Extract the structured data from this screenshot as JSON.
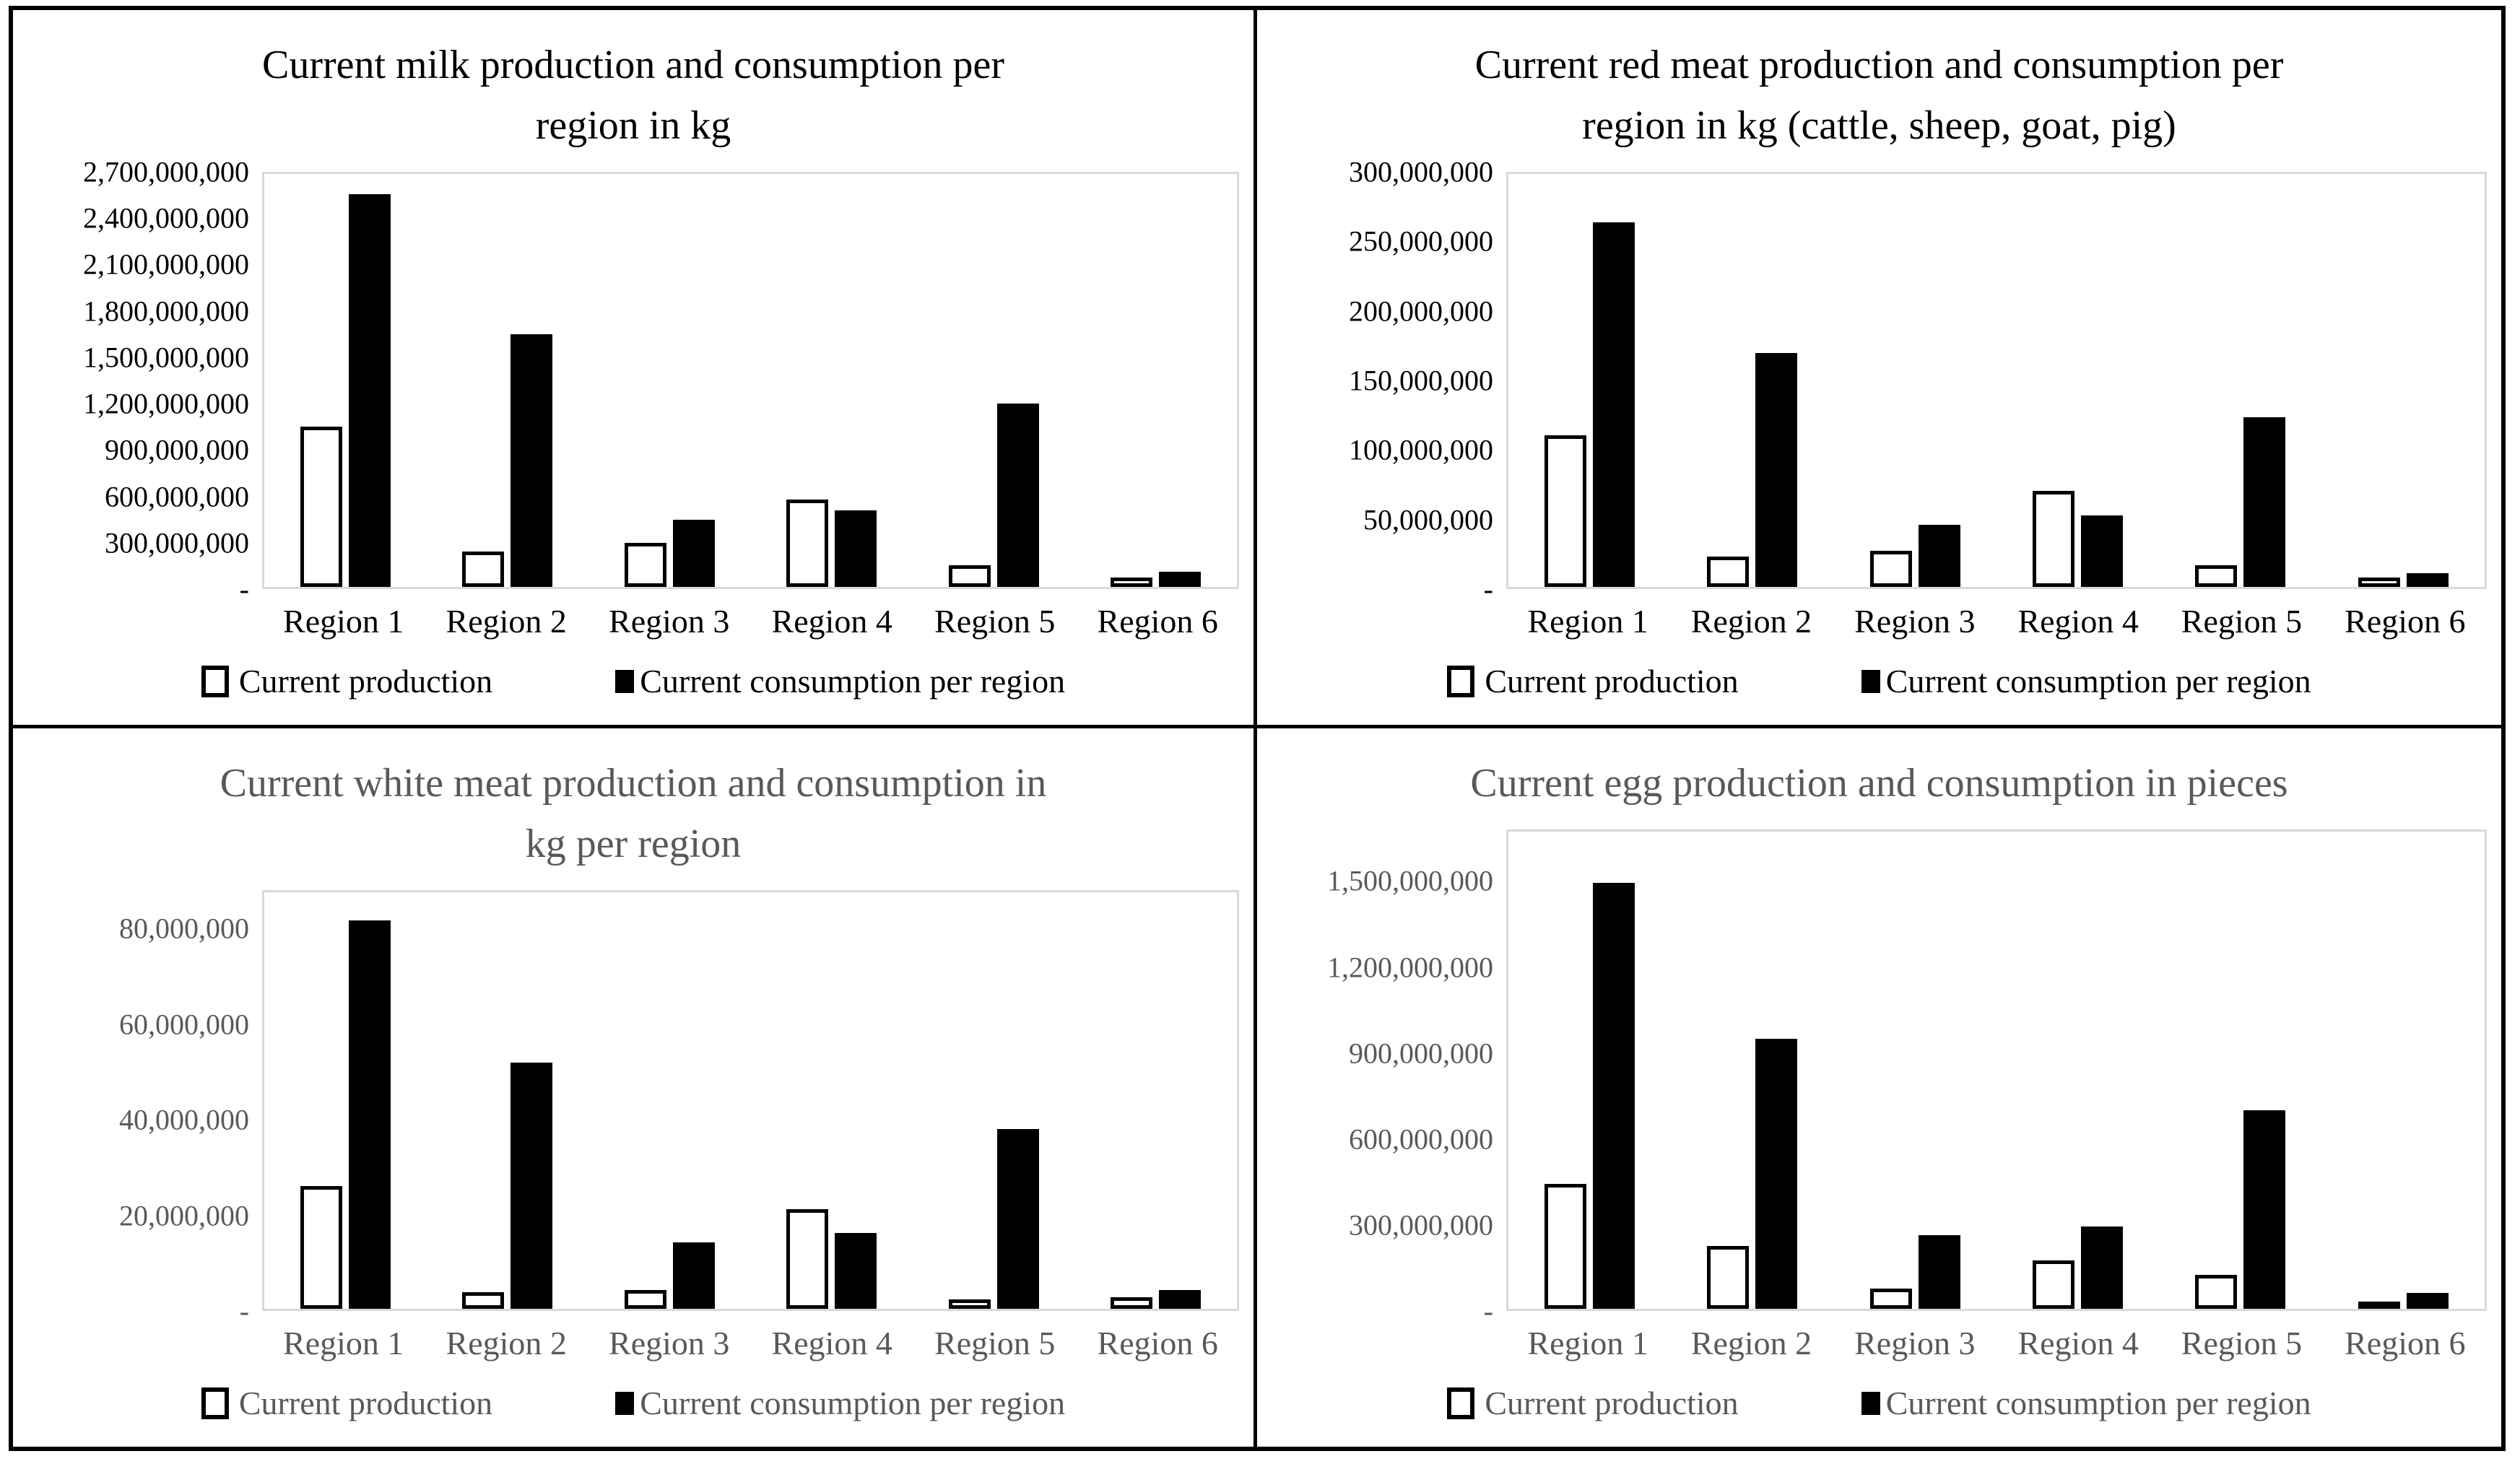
{
  "figure": {
    "background": "#ffffff",
    "border_color": "#000000",
    "plot_border_color": "#d9d9d9",
    "bar_fill_consumption": "#000000",
    "bar_outline_production": "#000000",
    "gray_text_color": "#595959",
    "black_text_color": "#000000"
  },
  "chart_data": [
    {
      "type": "bar",
      "title": "Current milk production and consumption per region in kg",
      "text_color": "#000000",
      "grid": false,
      "legend_position": "bottom",
      "categories": [
        "Region 1",
        "Region 2",
        "Region 3",
        "Region 4",
        "Region 5",
        "Region 6"
      ],
      "series": [
        {
          "name": "Current production",
          "values": [
            1050000000,
            230000000,
            290000000,
            570000000,
            140000000,
            60000000
          ]
        },
        {
          "name": "Current consumption per region",
          "values": [
            2570000000,
            1650000000,
            440000000,
            500000000,
            1200000000,
            100000000
          ]
        }
      ],
      "y_axis": {
        "plot_top_value": 2700000000,
        "ticks": [
          {
            "label": "2,700,000,000",
            "value": 2700000000
          },
          {
            "label": "2,400,000,000",
            "value": 2400000000
          },
          {
            "label": "2,100,000,000",
            "value": 2100000000
          },
          {
            "label": "1,800,000,000",
            "value": 1800000000
          },
          {
            "label": "1,500,000,000",
            "value": 1500000000
          },
          {
            "label": "1,200,000,000",
            "value": 1200000000
          },
          {
            "label": "900,000,000",
            "value": 900000000
          },
          {
            "label": "600,000,000",
            "value": 600000000
          },
          {
            "label": "300,000,000",
            "value": 300000000
          },
          {
            "label": "-",
            "value": 0
          }
        ]
      }
    },
    {
      "type": "bar",
      "title": "Current red meat production and consumption per region in kg (cattle, sheep, goat, pig)",
      "text_color": "#000000",
      "grid": false,
      "legend_position": "bottom",
      "categories": [
        "Region 1",
        "Region 2",
        "Region 3",
        "Region 4",
        "Region 5",
        "Region 6"
      ],
      "series": [
        {
          "name": "Current production",
          "values": [
            110000000,
            22000000,
            26000000,
            70000000,
            16000000,
            7000000
          ]
        },
        {
          "name": "Current consumption per region",
          "values": [
            265000000,
            170000000,
            45000000,
            52000000,
            123000000,
            10000000
          ]
        }
      ],
      "y_axis": {
        "plot_top_value": 300000000,
        "ticks": [
          {
            "label": "300,000,000",
            "value": 300000000
          },
          {
            "label": "250,000,000",
            "value": 250000000
          },
          {
            "label": "200,000,000",
            "value": 200000000
          },
          {
            "label": "150,000,000",
            "value": 150000000
          },
          {
            "label": "100,000,000",
            "value": 100000000
          },
          {
            "label": "50,000,000",
            "value": 50000000
          },
          {
            "label": "-",
            "value": 0
          }
        ]
      }
    },
    {
      "type": "bar",
      "title": "Current white meat production and consumption in kg per region",
      "text_color": "#595959",
      "grid": false,
      "legend_position": "bottom",
      "categories": [
        "Region 1",
        "Region 2",
        "Region 3",
        "Region 4",
        "Region 5",
        "Region 6"
      ],
      "series": [
        {
          "name": "Current production",
          "values": [
            26000000,
            3500000,
            4000000,
            21000000,
            2000000,
            2500000
          ]
        },
        {
          "name": "Current consumption per region",
          "values": [
            82000000,
            52000000,
            14000000,
            16000000,
            38000000,
            4000000
          ]
        }
      ],
      "y_axis": {
        "plot_top_value": 88000000,
        "ticks": [
          {
            "label": "80,000,000",
            "value": 80000000
          },
          {
            "label": "60,000,000",
            "value": 60000000
          },
          {
            "label": "40,000,000",
            "value": 40000000
          },
          {
            "label": "20,000,000",
            "value": 20000000
          },
          {
            "label": "-",
            "value": 0
          }
        ]
      }
    },
    {
      "type": "bar",
      "title": "Current egg production and consumption in pieces",
      "text_color": "#595959",
      "grid": false,
      "legend_position": "bottom",
      "categories": [
        "Region 1",
        "Region 2",
        "Region 3",
        "Region 4",
        "Region 5",
        "Region 6"
      ],
      "series": [
        {
          "name": "Current production",
          "values": [
            440000000,
            220000000,
            70000000,
            170000000,
            120000000,
            20000000
          ]
        },
        {
          "name": "Current consumption per region",
          "values": [
            1500000000,
            950000000,
            260000000,
            290000000,
            700000000,
            55000000
          ]
        }
      ],
      "y_axis": {
        "plot_top_value": 1680000000,
        "ticks": [
          {
            "label": "1,500,000,000",
            "value": 1500000000
          },
          {
            "label": "1,200,000,000",
            "value": 1200000000
          },
          {
            "label": "900,000,000",
            "value": 900000000
          },
          {
            "label": "600,000,000",
            "value": 600000000
          },
          {
            "label": "300,000,000",
            "value": 300000000
          },
          {
            "label": "-",
            "value": 0
          }
        ]
      }
    }
  ]
}
